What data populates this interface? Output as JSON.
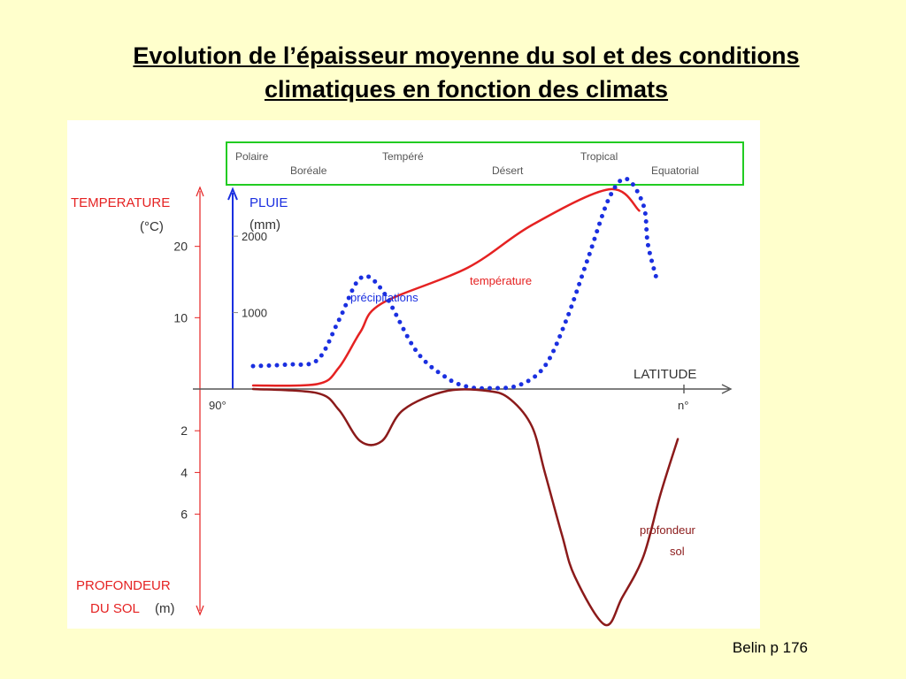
{
  "title": {
    "line1": "Evolution de l’épaisseur moyenne du sol et des conditions",
    "line2": "climatiques en fonction des climats"
  },
  "source": "Belin p 176",
  "colors": {
    "background": "#ffffcc",
    "temperature": "#e52222",
    "rain": "#1a2fe0",
    "soil": "#8b1a1a",
    "climate_box": "#22cc22",
    "axis": "#555555"
  },
  "chart_data": {
    "type": "line",
    "climates_top": [
      "Polaire",
      "Tempéré",
      "Tropical"
    ],
    "climates_bottom": [
      "Boréale",
      "Désert",
      "Equatorial"
    ],
    "x_axis": {
      "label": "LATITUDE",
      "start_label": "90°",
      "end_label": "n°"
    },
    "temperature_axis": {
      "label": "TEMPERATURE",
      "unit": "(°C)",
      "ticks": [
        10,
        20
      ]
    },
    "rain_axis": {
      "label": "PLUIE",
      "unit": "(mm)",
      "ticks": [
        1000,
        2000
      ]
    },
    "soil_axis": {
      "label": "PROFONDEUR",
      "label2": "DU SOL",
      "unit": "(m)",
      "ticks": [
        2,
        4,
        6
      ]
    },
    "x_scale": [
      0,
      100
    ],
    "temperature_ylim": [
      0,
      30
    ],
    "rain_ylim": [
      0,
      2800
    ],
    "soil_ylim": [
      0,
      10
    ],
    "series": [
      {
        "name": "température",
        "key": "temperature",
        "axis": "temperature",
        "x": [
          0,
          15,
          20,
          25,
          30,
          50,
          65,
          83,
          90
        ],
        "values": [
          0.5,
          0.7,
          3,
          8,
          12,
          17,
          23,
          28,
          25
        ]
      },
      {
        "name": "précipitations",
        "key": "rain",
        "axis": "rain",
        "x": [
          0,
          8,
          15,
          20,
          25,
          30,
          38,
          45,
          50,
          55,
          62,
          68,
          73,
          78,
          83,
          87,
          91,
          92,
          94
        ],
        "values": [
          300,
          320,
          380,
          900,
          1450,
          1300,
          500,
          150,
          30,
          10,
          50,
          300,
          900,
          1700,
          2500,
          2750,
          2400,
          1900,
          1450
        ]
      },
      {
        "name": "profondeur sol",
        "name_line1": "profondeur",
        "name_line2": "sol",
        "key": "soil",
        "axis": "soil",
        "x": [
          0,
          15,
          20,
          25,
          30,
          35,
          45,
          55,
          60,
          65,
          68,
          72,
          75,
          82,
          86,
          91,
          95,
          99
        ],
        "values": [
          0,
          0.2,
          1,
          2.5,
          2.5,
          1,
          0.1,
          0.1,
          0.5,
          1.8,
          4,
          7,
          9,
          11.3,
          10,
          8,
          5,
          2.4
        ]
      }
    ]
  }
}
